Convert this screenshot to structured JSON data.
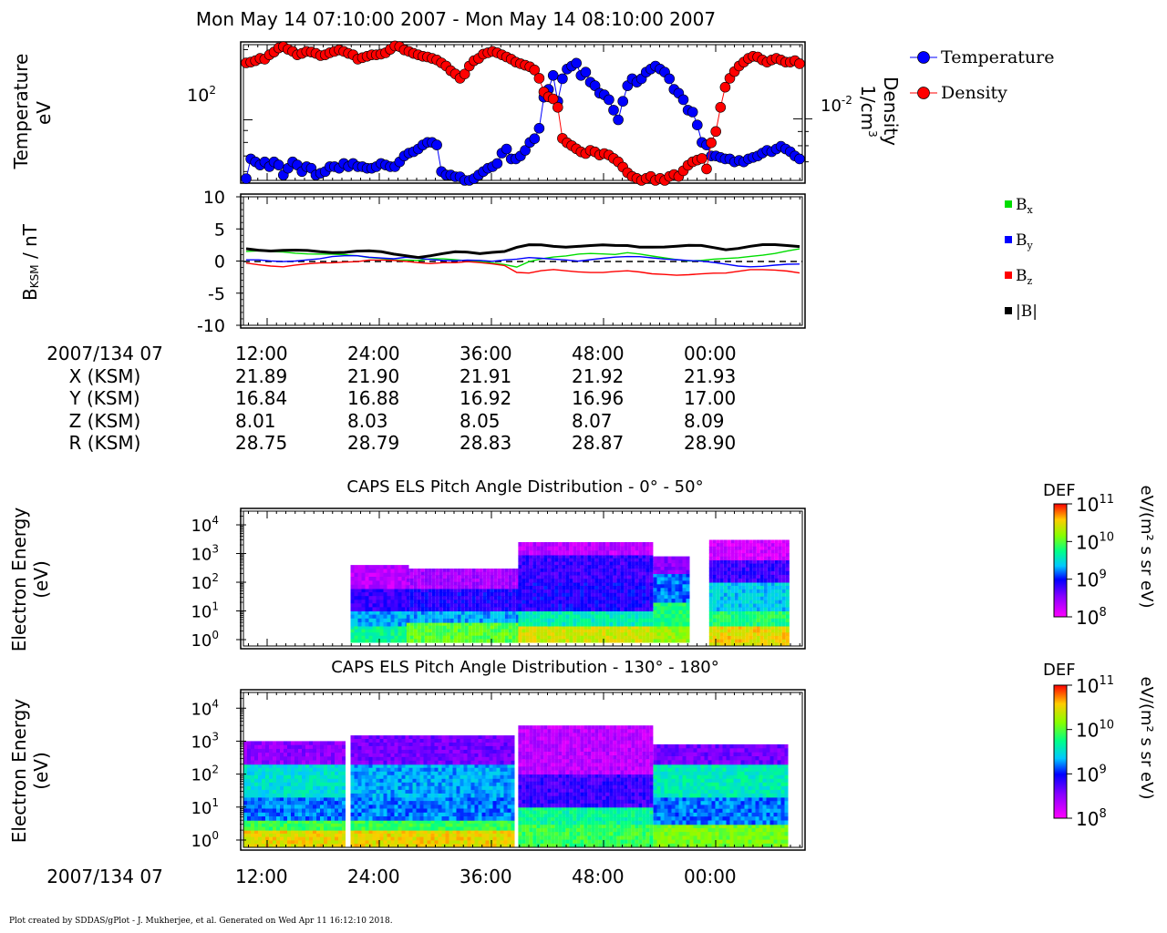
{
  "page_title": "Mon May 14 07:10:00 2007 - Mon May 14 08:10:00 2007",
  "footer": "Plot created by SDDAS/gPlot - J. Mukherjee, et al.  Generated on Wed Apr 11 16:12:10 2018.",
  "colors": {
    "temperature": "#0000ff",
    "density": "#ff0000",
    "bx": "#00dd00",
    "by": "#0000ff",
    "bz": "#ff0000",
    "bmag": "#000000"
  },
  "chart_data": [
    {
      "type": "line",
      "ylabel_left": "Temperature",
      "ylabel_left_unit": "eV",
      "ytick_left": "10",
      "ytick_left_exp": "2",
      "ylabel_right": "Density",
      "ylabel_right_unit": "1/cm",
      "ylabel_right_unit_exp": "3",
      "ytick_right": "10",
      "ytick_right_exp": "-2",
      "ylog_left": true,
      "ylim_left": [
        55,
        210
      ],
      "ylog_right": true,
      "ylim_right": [
        0.006,
        0.0185
      ],
      "series": [
        {
          "name": "Temperature",
          "values": [
            56,
            68,
            66,
            64,
            66,
            63,
            66,
            64,
            58,
            62,
            66,
            64,
            60,
            63,
            62,
            58,
            59,
            60,
            63,
            63,
            62,
            65,
            63,
            65,
            63,
            63,
            62,
            62,
            63,
            65,
            64,
            63,
            63,
            66,
            70,
            72,
            73,
            75,
            78,
            80,
            80,
            78,
            60,
            58,
            58,
            57,
            57,
            55,
            55,
            56,
            58,
            60,
            62,
            63,
            65,
            72,
            75,
            68,
            68,
            70,
            74,
            80,
            83,
            92,
            125,
            135,
            155,
            120,
            150,
            165,
            170,
            175,
            155,
            160,
            145,
            140,
            130,
            128,
            122,
            110,
            100,
            120,
            140,
            150,
            145,
            150,
            160,
            165,
            170,
            165,
            160,
            150,
            135,
            130,
            122,
            110,
            108,
            95,
            80,
            78,
            70,
            70,
            69,
            68,
            68,
            66,
            67,
            66,
            68,
            69,
            70,
            72,
            74,
            73,
            75,
            77,
            75,
            73,
            70,
            68
          ]
        },
        {
          "name": "Density",
          "values": [
            0.0159,
            0.016,
            0.0162,
            0.0165,
            0.0164,
            0.017,
            0.0174,
            0.018,
            0.0182,
            0.0178,
            0.0175,
            0.017,
            0.0172,
            0.0175,
            0.0174,
            0.0172,
            0.0169,
            0.017,
            0.0173,
            0.0175,
            0.0177,
            0.0175,
            0.0172,
            0.017,
            0.0164,
            0.0166,
            0.0168,
            0.017,
            0.017,
            0.0171,
            0.0173,
            0.0178,
            0.0183,
            0.0182,
            0.0177,
            0.0175,
            0.0172,
            0.017,
            0.0168,
            0.0167,
            0.0165,
            0.0163,
            0.0159,
            0.0155,
            0.0149,
            0.0145,
            0.014,
            0.0145,
            0.0155,
            0.0162,
            0.0165,
            0.0171,
            0.0173,
            0.0175,
            0.0173,
            0.017,
            0.0167,
            0.0164,
            0.016,
            0.0158,
            0.0156,
            0.0154,
            0.015,
            0.014,
            0.0125,
            0.012,
            0.0118,
            0.011,
            0.0085,
            0.0082,
            0.008,
            0.0078,
            0.0076,
            0.0075,
            0.0077,
            0.0076,
            0.0074,
            0.0075,
            0.0074,
            0.0072,
            0.007,
            0.0067,
            0.0064,
            0.0062,
            0.0061,
            0.006,
            0.0061,
            0.0062,
            0.006,
            0.0061,
            0.006,
            0.0062,
            0.0063,
            0.0062,
            0.0065,
            0.0068,
            0.007,
            0.0071,
            0.0072,
            0.0066,
            0.0082,
            0.009,
            0.011,
            0.013,
            0.014,
            0.0148,
            0.0155,
            0.016,
            0.0165,
            0.0168,
            0.0167,
            0.0163,
            0.016,
            0.0163,
            0.0165,
            0.0163,
            0.016,
            0.016,
            0.0162,
            0.0158
          ]
        }
      ]
    },
    {
      "type": "line",
      "ylabel": "B",
      "ylabel_sub": "KSM",
      "ylabel_unit": " / nT",
      "ylim": [
        -10,
        10
      ],
      "yticks": [
        "10",
        "5",
        "0",
        "-5",
        "-10"
      ],
      "yticks_values": [
        10,
        5,
        0,
        -5,
        -10
      ],
      "series": [
        {
          "name": "B",
          "name_sub": "x",
          "values": [
            1.5,
            1.5,
            1.4,
            1.4,
            1.3,
            1.2,
            1.1,
            1.0,
            0.9,
            0.8,
            0.6,
            0.5,
            0.2,
            0.1,
            0.0,
            0.3,
            0.4,
            0.3,
            0.1,
            -0.1,
            -0.4,
            -0.6,
            -0.9,
            0.0,
            0.4,
            0.6,
            0.7,
            1.0,
            1.2,
            1.2,
            1.1,
            1.3,
            1.0,
            0.7,
            0.5,
            0.3,
            0.1,
            0.1,
            0.2,
            0.3,
            0.5,
            0.8,
            1.0,
            1.2,
            1.5,
            1.8
          ]
        },
        {
          "name": "B",
          "name_sub": "y",
          "values": [
            0.1,
            0.1,
            0.0,
            0.0,
            0.1,
            0.2,
            0.3,
            0.6,
            0.8,
            0.9,
            0.7,
            0.5,
            0.3,
            0.5,
            0.4,
            0.3,
            0.2,
            0.1,
            0.1,
            0.0,
            -0.1,
            0.2,
            0.4,
            0.6,
            0.4,
            0.2,
            0.1,
            0.0,
            0.3,
            0.5,
            0.6,
            0.6,
            0.6,
            0.5,
            0.4,
            0.3,
            0.1,
            -0.1,
            -0.3,
            -0.5,
            -0.7,
            -0.8,
            -0.8,
            -0.7,
            -0.6,
            -0.5
          ]
        },
        {
          "name": "B",
          "name_sub": "z",
          "values": [
            -0.4,
            -0.6,
            -0.7,
            -0.8,
            -0.6,
            -0.5,
            -0.4,
            -0.3,
            -0.1,
            0.0,
            0.2,
            0.1,
            0.0,
            -0.1,
            -0.2,
            -0.3,
            -0.2,
            -0.3,
            -0.2,
            -0.3,
            -0.4,
            -0.6,
            -1.7,
            -1.9,
            -1.6,
            -1.4,
            -1.5,
            -1.6,
            -1.7,
            -1.8,
            -1.7,
            -1.6,
            -1.7,
            -1.9,
            -2.0,
            -2.2,
            -2.2,
            -2.1,
            -1.9,
            -1.8,
            -1.5,
            -1.3,
            -1.4,
            -1.5,
            -1.6,
            -1.8
          ]
        },
        {
          "name": "|B|",
          "values": [
            1.9,
            1.8,
            1.7,
            1.7,
            1.6,
            1.5,
            1.4,
            1.4,
            1.5,
            1.6,
            1.5,
            1.3,
            1.0,
            0.9,
            0.7,
            0.9,
            1.1,
            1.3,
            1.3,
            1.2,
            1.5,
            1.6,
            2.1,
            2.4,
            2.4,
            2.3,
            2.3,
            2.4,
            2.4,
            2.4,
            2.3,
            2.4,
            2.3,
            2.3,
            2.2,
            2.2,
            2.3,
            2.4,
            2.2,
            1.9,
            2.0,
            2.2,
            2.4,
            2.5,
            2.5,
            2.4
          ]
        }
      ]
    },
    {
      "type": "heatmap",
      "title": "CAPS ELS Pitch Angle Distribution - 0° - 50°",
      "ylabel": "Electron Energy",
      "ylabel_unit": "(eV)",
      "ylog": true,
      "ylim": [
        0.6,
        30000
      ],
      "colorbar_label": "DEF",
      "colorbar_unit": "eV/(m² s sr eV)",
      "colorbar_ticks": [
        {
          "base": "10",
          "exp": "11"
        },
        {
          "base": "10",
          "exp": "10"
        },
        {
          "base": "10",
          "exp": "9"
        },
        {
          "base": "10",
          "exp": "8"
        }
      ],
      "colorbar_range_log10": [
        8,
        11
      ],
      "profiles": [
        {
          "x_minutes": [
            0,
            11.5
          ],
          "bands": []
        },
        {
          "x_minutes": [
            11.5,
            17.5
          ],
          "bands": [
            [
              0.8,
              3,
              9.7
            ],
            [
              3,
              10,
              9.3
            ],
            [
              10,
              60,
              8.8
            ],
            [
              60,
              400,
              8.3
            ]
          ]
        },
        {
          "x_minutes": [
            17.5,
            29.5
          ],
          "bands": [
            [
              0.8,
              4,
              10.0
            ],
            [
              4,
              10,
              9.3
            ],
            [
              10,
              60,
              8.9
            ],
            [
              60,
              300,
              8.4
            ]
          ]
        },
        {
          "x_minutes": [
            29.5,
            44.0
          ],
          "bands": [
            [
              0.8,
              3,
              10.4
            ],
            [
              3,
              10,
              9.6
            ],
            [
              10,
              100,
              8.9
            ],
            [
              100,
              900,
              8.8
            ],
            [
              900,
              2500,
              8.3
            ]
          ]
        },
        {
          "x_minutes": [
            44.0,
            48.0
          ],
          "bands": [
            [
              0.8,
              3,
              10.2
            ],
            [
              3,
              20,
              9.8
            ],
            [
              20,
              200,
              9.2
            ],
            [
              200,
              800,
              8.5
            ]
          ]
        },
        {
          "x_minutes": [
            50.0,
            58.5
          ],
          "bands": [
            [
              0.6,
              3,
              10.5
            ],
            [
              3,
              10,
              9.8
            ],
            [
              10,
              100,
              9.4
            ],
            [
              100,
              600,
              8.8
            ],
            [
              600,
              3000,
              8.2
            ]
          ]
        }
      ]
    },
    {
      "type": "heatmap",
      "title": "CAPS ELS Pitch Angle Distribution - 130° - 180°",
      "ylabel": "Electron Energy",
      "ylabel_unit": "(eV)",
      "ylog": true,
      "ylim": [
        0.6,
        30000
      ],
      "colorbar_label": "DEF",
      "colorbar_unit": "eV/(m² s sr eV)",
      "colorbar_ticks": [
        {
          "base": "10",
          "exp": "11"
        },
        {
          "base": "10",
          "exp": "10"
        },
        {
          "base": "10",
          "exp": "9"
        },
        {
          "base": "10",
          "exp": "8"
        }
      ],
      "colorbar_range_log10": [
        8,
        11
      ],
      "profiles": [
        {
          "x_minutes": [
            0,
            11.0
          ],
          "bands": [
            [
              0.6,
              2,
              10.5
            ],
            [
              2,
              4,
              9.9
            ],
            [
              4,
              20,
              9.2
            ],
            [
              20,
              200,
              9.5
            ],
            [
              200,
              1000,
              8.5
            ]
          ]
        },
        {
          "x_minutes": [
            11.5,
            29.0
          ],
          "bands": [
            [
              0.6,
              2,
              10.5
            ],
            [
              2,
              4,
              9.9
            ],
            [
              4,
              20,
              9.2
            ],
            [
              20,
              200,
              9.3
            ],
            [
              200,
              1500,
              8.6
            ]
          ]
        },
        {
          "x_minutes": [
            29.5,
            44.0
          ],
          "bands": [
            [
              0.6,
              3,
              9.9
            ],
            [
              3,
              10,
              9.7
            ],
            [
              10,
              100,
              8.8
            ],
            [
              100,
              3000,
              8.3
            ]
          ]
        },
        {
          "x_minutes": [
            44.0,
            58.5
          ],
          "bands": [
            [
              0.6,
              3,
              10.1
            ],
            [
              3,
              20,
              9.2
            ],
            [
              20,
              200,
              9.6
            ],
            [
              200,
              800,
              8.6
            ]
          ]
        }
      ]
    }
  ],
  "time_axis": {
    "row_labels": [
      "2007/134 07",
      "X (KSM)",
      "Y (KSM)",
      "Z (KSM)",
      "R (KSM)"
    ],
    "ticks": [
      "12:00",
      "24:00",
      "36:00",
      "48:00",
      "00:00"
    ],
    "X": [
      "21.89",
      "21.90",
      "21.91",
      "21.92",
      "21.93"
    ],
    "Y": [
      "16.84",
      "16.88",
      "16.92",
      "16.96",
      "17.00"
    ],
    "Z": [
      "8.01",
      "8.03",
      "8.05",
      "8.07",
      "8.09"
    ],
    "R": [
      "28.75",
      "28.79",
      "28.83",
      "28.87",
      "28.90"
    ],
    "bottom_label": "2007/134 07",
    "bottom_ticks": [
      "12:00",
      "24:00",
      "36:00",
      "48:00",
      "00:00"
    ]
  }
}
